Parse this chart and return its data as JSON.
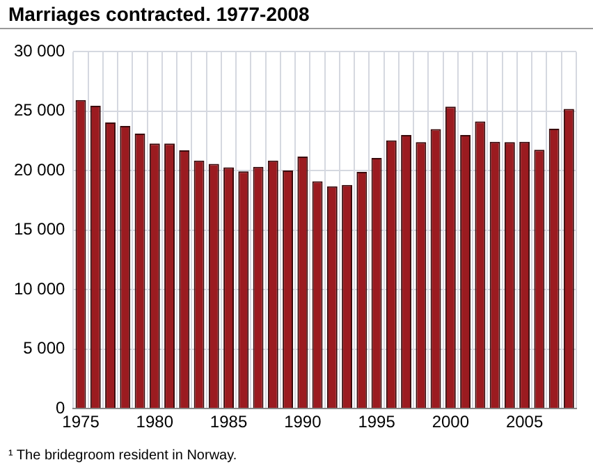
{
  "chart_data": {
    "type": "bar",
    "title": "Marriages contracted. 1977-2008",
    "categories": [
      "1975",
      null,
      null,
      null,
      null,
      "1980",
      null,
      null,
      null,
      null,
      "1985",
      null,
      null,
      null,
      null,
      "1990",
      null,
      null,
      null,
      null,
      "1995",
      null,
      null,
      null,
      null,
      "2000",
      null,
      null,
      null,
      null,
      "2005",
      null,
      null,
      null
    ],
    "values": [
      25950,
      25460,
      24060,
      23760,
      23120,
      22290,
      22290,
      21720,
      20850,
      20580,
      20280,
      19940,
      20320,
      20850,
      20020,
      21190,
      19110,
      18690,
      18800,
      19900,
      21070,
      22550,
      23000,
      22400,
      23500,
      25390,
      23000,
      24140,
      22440,
      22400,
      22440,
      21760,
      23530,
      25200
    ],
    "color": "#9b1b20",
    "ylim": [
      0,
      30000
    ],
    "yticks": [
      {
        "value": 0,
        "label": "0"
      },
      {
        "value": 5000,
        "label": "5 000"
      },
      {
        "value": 10000,
        "label": "10 000"
      },
      {
        "value": 15000,
        "label": "15 000"
      },
      {
        "value": 20000,
        "label": "20 000"
      },
      {
        "value": 25000,
        "label": "25 000"
      },
      {
        "value": 30000,
        "label": "30 000"
      }
    ],
    "grid": true,
    "annotations": [
      "¹ The bridegroom resident in Norway."
    ]
  }
}
